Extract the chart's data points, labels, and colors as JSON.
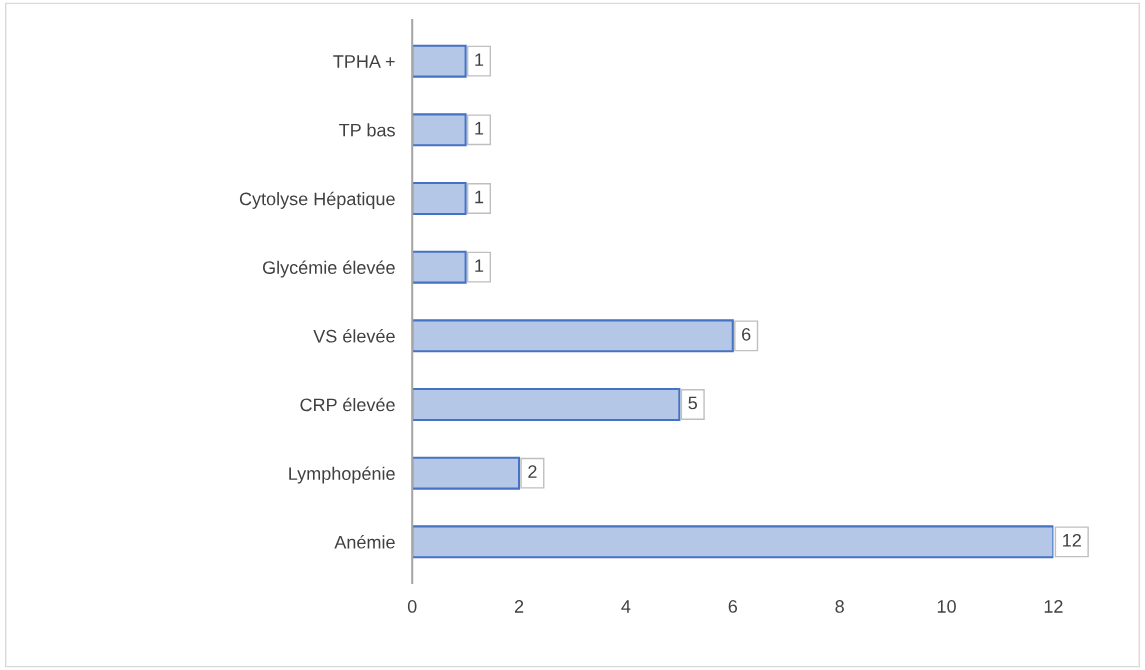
{
  "chart_data": {
    "type": "bar",
    "orientation": "horizontal",
    "categories": [
      "TPHA +",
      "TP bas",
      "Cytolyse Hépatique",
      "Glycémie élevée",
      "VS élevée",
      "CRP élevée",
      "Lymphopénie",
      "Anémie"
    ],
    "values": [
      1,
      1,
      1,
      1,
      6,
      5,
      2,
      12
    ],
    "color": "#b4c7e7",
    "xlim": [
      0,
      12
    ],
    "xticks": [
      0,
      2,
      4,
      6,
      8,
      10,
      12
    ],
    "grid": false,
    "legend": false,
    "data_labels": true
  }
}
